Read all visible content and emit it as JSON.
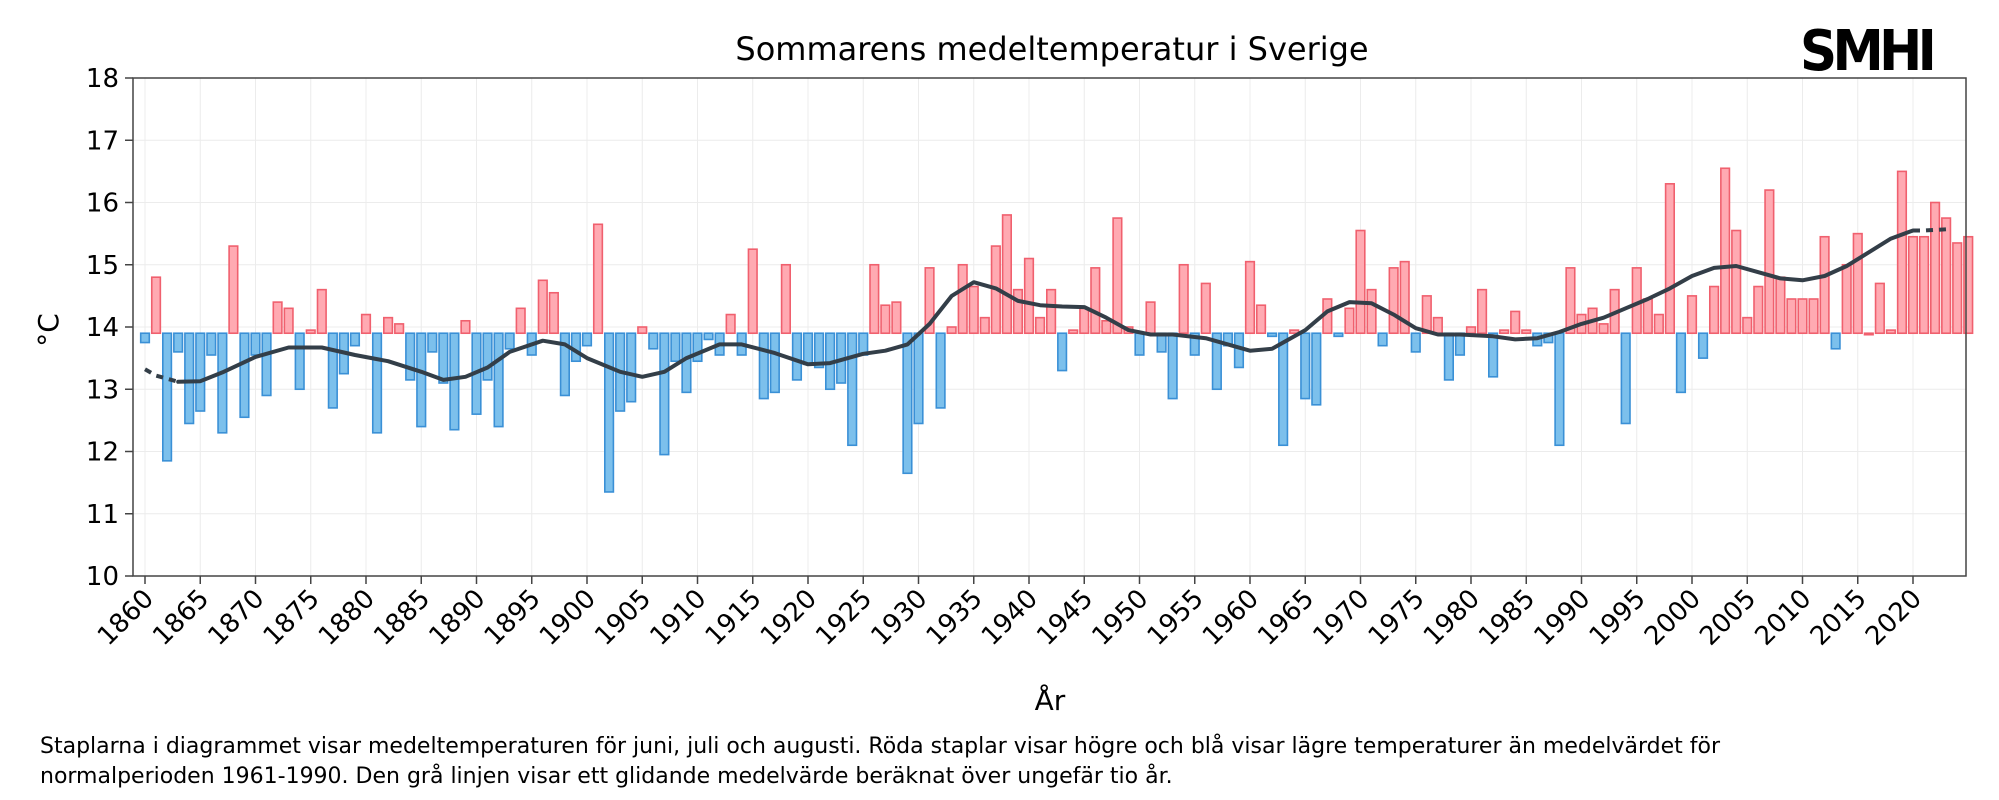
{
  "brand": {
    "logo_text": "SMHI"
  },
  "caption": {
    "line1": "Staplarna i diagrammet visar medeltemperaturen för juni, juli och augusti. Röda staplar visar högre och blå visar lägre temperaturer än medelvärdet för",
    "line2": "normalperioden 1961-1990. Den grå linjen visar ett glidande medelvärde beräknat över ungefär tio år."
  },
  "chart_data": {
    "type": "bar",
    "title": "Sommarens medeltemperatur i Sverige",
    "xlabel": "År",
    "ylabel": "°C",
    "ylim": [
      10,
      18
    ],
    "yticks": [
      10,
      11,
      12,
      13,
      14,
      15,
      16,
      17,
      18
    ],
    "xticks": [
      1860,
      1865,
      1870,
      1875,
      1880,
      1885,
      1890,
      1895,
      1900,
      1905,
      1910,
      1915,
      1920,
      1925,
      1930,
      1935,
      1940,
      1945,
      1950,
      1955,
      1960,
      1965,
      1970,
      1975,
      1980,
      1985,
      1990,
      1995,
      2000,
      2005,
      2010,
      2015,
      2020
    ],
    "baseline": 13.9,
    "grid": true,
    "colors": {
      "above_fill": "#ffaab2",
      "above_edge": "#f0606e",
      "below_fill": "#7cc0ec",
      "below_edge": "#3a90d6",
      "trend": "#333e48"
    },
    "start_year": 1860,
    "values": [
      13.75,
      14.8,
      11.85,
      13.6,
      12.45,
      12.65,
      13.55,
      12.3,
      15.3,
      12.55,
      13.55,
      12.9,
      14.4,
      14.3,
      13.0,
      13.95,
      14.6,
      12.7,
      13.25,
      13.7,
      14.2,
      12.3,
      14.15,
      14.05,
      13.15,
      12.4,
      13.6,
      13.1,
      12.35,
      14.1,
      12.6,
      13.15,
      12.4,
      13.65,
      14.3,
      13.55,
      14.75,
      14.55,
      12.9,
      13.45,
      13.7,
      15.65,
      11.35,
      12.65,
      12.8,
      14.0,
      13.65,
      11.95,
      13.45,
      12.95,
      13.45,
      13.8,
      13.55,
      14.2,
      13.55,
      15.25,
      12.85,
      12.95,
      15.0,
      13.15,
      13.4,
      13.35,
      13.0,
      13.1,
      12.1,
      13.55,
      15.0,
      14.35,
      14.4,
      11.65,
      12.45,
      14.95,
      12.7,
      14.0,
      15.0,
      14.65,
      14.15,
      15.3,
      15.8,
      14.6,
      15.1,
      14.15,
      14.6,
      13.3,
      13.95,
      14.3,
      14.95,
      14.1,
      15.75,
      14.0,
      13.55,
      14.4,
      13.6,
      12.85,
      15.0,
      13.55,
      14.7,
      13.0,
      13.7,
      13.35,
      15.05,
      14.35,
      13.85,
      12.1,
      13.95,
      12.85,
      12.75,
      14.45,
      13.85,
      14.3,
      15.55,
      14.6,
      13.7,
      14.95,
      15.05,
      13.6,
      14.5,
      14.15,
      13.15,
      13.55,
      14.0,
      14.6,
      13.2,
      13.95,
      14.25,
      13.95,
      13.7,
      13.75,
      12.1,
      14.95,
      14.2,
      14.3,
      14.05,
      14.6,
      12.45,
      14.95,
      14.45,
      14.2,
      16.3,
      12.95,
      14.5,
      13.5,
      14.65,
      16.55,
      15.55,
      14.15,
      14.65,
      16.2,
      14.8,
      14.45,
      14.45,
      14.45,
      15.45,
      13.65,
      15.0,
      15.5,
      13.9,
      14.7,
      13.95,
      16.5,
      15.45,
      15.45,
      16.0,
      15.75,
      15.35,
      15.45
    ],
    "trend": [
      [
        1860,
        13.32
      ],
      [
        1861,
        13.22
      ],
      [
        1863,
        13.12
      ],
      [
        1865,
        13.13
      ],
      [
        1867,
        13.27
      ],
      [
        1870,
        13.52
      ],
      [
        1873,
        13.67
      ],
      [
        1876,
        13.67
      ],
      [
        1879,
        13.55
      ],
      [
        1882,
        13.45
      ],
      [
        1885,
        13.28
      ],
      [
        1887,
        13.15
      ],
      [
        1889,
        13.2
      ],
      [
        1891,
        13.35
      ],
      [
        1893,
        13.6
      ],
      [
        1896,
        13.78
      ],
      [
        1898,
        13.72
      ],
      [
        1900,
        13.5
      ],
      [
        1903,
        13.28
      ],
      [
        1905,
        13.2
      ],
      [
        1907,
        13.28
      ],
      [
        1909,
        13.5
      ],
      [
        1912,
        13.72
      ],
      [
        1914,
        13.72
      ],
      [
        1917,
        13.58
      ],
      [
        1920,
        13.4
      ],
      [
        1922,
        13.42
      ],
      [
        1925,
        13.57
      ],
      [
        1927,
        13.62
      ],
      [
        1929,
        13.72
      ],
      [
        1931,
        14.05
      ],
      [
        1933,
        14.5
      ],
      [
        1935,
        14.72
      ],
      [
        1937,
        14.62
      ],
      [
        1939,
        14.42
      ],
      [
        1941,
        14.35
      ],
      [
        1943,
        14.33
      ],
      [
        1945,
        14.32
      ],
      [
        1947,
        14.15
      ],
      [
        1949,
        13.95
      ],
      [
        1951,
        13.88
      ],
      [
        1953,
        13.88
      ],
      [
        1956,
        13.82
      ],
      [
        1958,
        13.72
      ],
      [
        1960,
        13.62
      ],
      [
        1962,
        13.65
      ],
      [
        1965,
        13.95
      ],
      [
        1967,
        14.25
      ],
      [
        1969,
        14.4
      ],
      [
        1971,
        14.38
      ],
      [
        1973,
        14.2
      ],
      [
        1975,
        13.98
      ],
      [
        1977,
        13.88
      ],
      [
        1979,
        13.88
      ],
      [
        1982,
        13.85
      ],
      [
        1984,
        13.8
      ],
      [
        1986,
        13.82
      ],
      [
        1988,
        13.92
      ],
      [
        1990,
        14.05
      ],
      [
        1992,
        14.15
      ],
      [
        1994,
        14.3
      ],
      [
        1996,
        14.45
      ],
      [
        1998,
        14.62
      ],
      [
        2000,
        14.82
      ],
      [
        2002,
        14.95
      ],
      [
        2004,
        14.98
      ],
      [
        2006,
        14.88
      ],
      [
        2008,
        14.78
      ],
      [
        2010,
        14.75
      ],
      [
        2012,
        14.82
      ],
      [
        2014,
        14.98
      ],
      [
        2016,
        15.2
      ],
      [
        2018,
        15.42
      ],
      [
        2020,
        15.55
      ],
      [
        2021,
        15.55
      ],
      [
        2023,
        15.57
      ]
    ]
  }
}
